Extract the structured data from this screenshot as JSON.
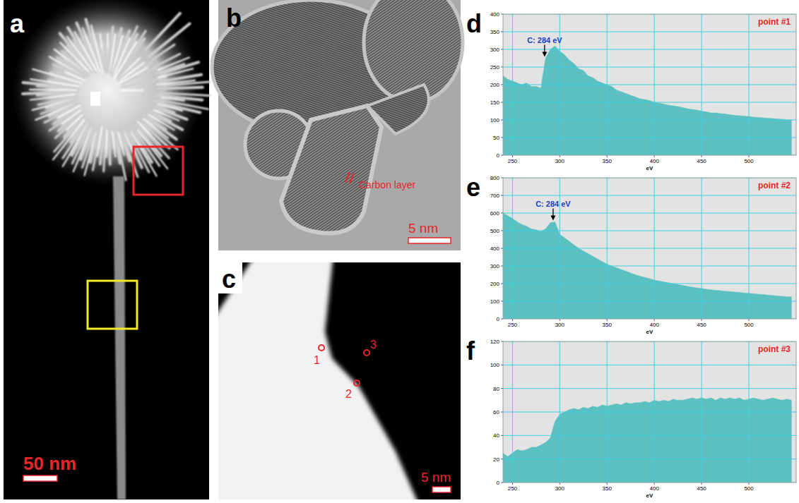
{
  "panels": {
    "a": {
      "label": "a",
      "scale_bar": "50 nm"
    },
    "b": {
      "label": "b",
      "scale_bar": "5 nm",
      "annotation": "Carbon layer"
    },
    "c": {
      "label": "c",
      "scale_bar": "5 nm",
      "points": [
        "1",
        "2",
        "3"
      ]
    }
  },
  "chart_data": [
    {
      "type": "area",
      "panel_label": "d",
      "title": "point #1",
      "x_label": "eV",
      "x": [
        240,
        245,
        250,
        255,
        260,
        265,
        270,
        275,
        280,
        285,
        290,
        295,
        300,
        305,
        310,
        315,
        320,
        325,
        330,
        335,
        340,
        345,
        350,
        355,
        360,
        365,
        370,
        375,
        380,
        385,
        390,
        395,
        400,
        405,
        410,
        415,
        420,
        425,
        430,
        435,
        440,
        445,
        450,
        455,
        460,
        465,
        470,
        475,
        480,
        485,
        490,
        495,
        500,
        505,
        510,
        515,
        520,
        525,
        530,
        535,
        540,
        545
      ],
      "values": [
        225,
        215,
        210,
        205,
        200,
        205,
        195,
        195,
        190,
        275,
        300,
        310,
        295,
        285,
        270,
        260,
        245,
        240,
        225,
        220,
        210,
        205,
        200,
        195,
        185,
        180,
        175,
        170,
        165,
        160,
        158,
        155,
        150,
        148,
        145,
        142,
        140,
        138,
        135,
        132,
        130,
        128,
        125,
        123,
        120,
        120,
        118,
        117,
        115,
        113,
        112,
        111,
        110,
        108,
        107,
        106,
        105,
        104,
        103,
        102,
        101,
        100
      ],
      "color": "#5cc0c0",
      "xlim": [
        240,
        550
      ],
      "xticks": [
        250,
        300,
        350,
        400,
        450,
        500
      ],
      "ylim": [
        0,
        400
      ],
      "yticks": [
        0,
        50,
        100,
        150,
        200,
        250,
        300,
        350,
        400
      ],
      "grid": true,
      "annotations": [
        {
          "text": "C: 284 eV",
          "x": 284
        }
      ]
    },
    {
      "type": "area",
      "panel_label": "e",
      "title": "point #2",
      "x_label": "eV",
      "x": [
        240,
        245,
        250,
        255,
        260,
        265,
        270,
        275,
        280,
        285,
        290,
        295,
        300,
        305,
        310,
        315,
        320,
        325,
        330,
        335,
        340,
        345,
        350,
        355,
        360,
        365,
        370,
        375,
        380,
        385,
        390,
        395,
        400,
        405,
        410,
        415,
        420,
        425,
        430,
        435,
        440,
        445,
        450,
        455,
        460,
        465,
        470,
        475,
        480,
        485,
        490,
        495,
        500,
        505,
        510,
        515,
        520,
        525,
        530,
        535,
        540,
        545
      ],
      "values": [
        600,
        585,
        570,
        550,
        535,
        525,
        510,
        505,
        495,
        510,
        545,
        550,
        480,
        460,
        440,
        420,
        400,
        385,
        370,
        355,
        340,
        325,
        310,
        300,
        290,
        280,
        270,
        260,
        250,
        242,
        235,
        228,
        220,
        215,
        210,
        205,
        200,
        195,
        190,
        185,
        180,
        176,
        172,
        168,
        165,
        162,
        160,
        157,
        155,
        152,
        150,
        147,
        145,
        143,
        140,
        138,
        135,
        133,
        130,
        128,
        126,
        125
      ],
      "color": "#5cc0c0",
      "xlim": [
        240,
        550
      ],
      "xticks": [
        250,
        300,
        350,
        400,
        450,
        500
      ],
      "ylim": [
        0,
        800
      ],
      "yticks": [
        0,
        100,
        200,
        300,
        400,
        500,
        600,
        700,
        800
      ],
      "grid": true,
      "annotations": [
        {
          "text": "C: 284 eV",
          "x": 293
        }
      ]
    },
    {
      "type": "area",
      "panel_label": "f",
      "title": "point #3",
      "x_label": "eV",
      "x": [
        240,
        245,
        250,
        255,
        260,
        265,
        270,
        275,
        280,
        285,
        290,
        295,
        300,
        305,
        310,
        315,
        320,
        325,
        330,
        335,
        340,
        345,
        350,
        355,
        360,
        365,
        370,
        375,
        380,
        385,
        390,
        395,
        400,
        405,
        410,
        415,
        420,
        425,
        430,
        435,
        440,
        445,
        450,
        455,
        460,
        465,
        470,
        475,
        480,
        485,
        490,
        495,
        500,
        505,
        510,
        515,
        520,
        525,
        530,
        535,
        540,
        545
      ],
      "values": [
        25,
        22,
        25,
        28,
        27,
        28,
        30,
        30,
        32,
        34,
        38,
        52,
        58,
        60,
        62,
        63,
        62,
        64,
        63,
        65,
        64,
        66,
        65,
        66,
        67,
        66,
        68,
        67,
        68,
        68,
        69,
        68,
        70,
        69,
        70,
        69,
        71,
        70,
        70,
        71,
        72,
        71,
        72,
        71,
        72,
        70,
        72,
        71,
        72,
        71,
        72,
        70,
        71,
        72,
        71,
        70,
        71,
        72,
        71,
        70,
        71,
        70
      ],
      "color": "#5cc0c0",
      "xlim": [
        240,
        550
      ],
      "xticks": [
        250,
        300,
        350,
        400,
        450,
        500
      ],
      "ylim": [
        0,
        120
      ],
      "yticks": [
        0,
        20,
        40,
        60,
        80,
        100,
        120
      ],
      "grid": true
    }
  ]
}
